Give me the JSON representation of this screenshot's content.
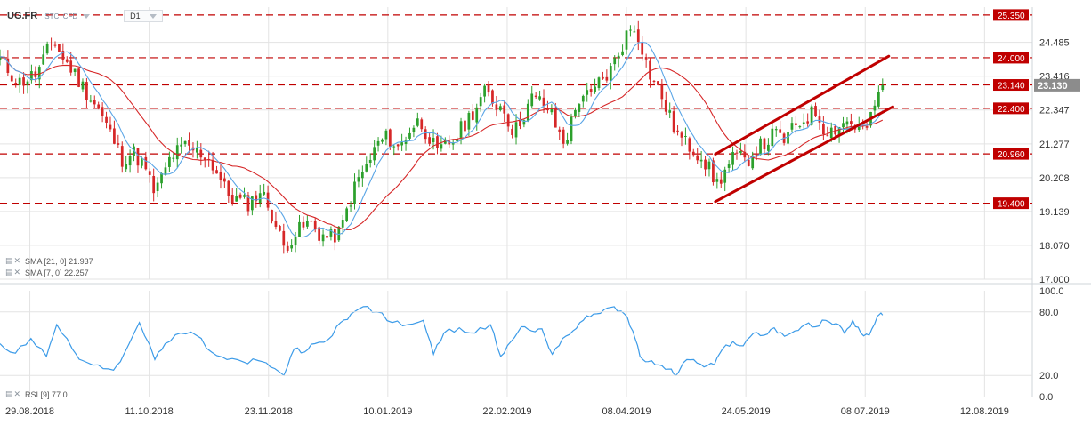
{
  "header": {
    "symbol": "UG.FR",
    "instrument_type": "STC_CFD",
    "timeframe": "D1"
  },
  "indicators": {
    "sma21": "SMA [21, 0] 21.937",
    "sma7": "SMA [7, 0] 22.257",
    "rsi": "RSI [9] 77.0"
  },
  "chart_data": {
    "type": "candlestick",
    "price_axis": {
      "ylim": [
        17.0,
        25.6
      ],
      "ticks": [
        "24.485",
        "23.416",
        "22.347",
        "21.277",
        "20.208",
        "19.139",
        "18.070",
        "17.000"
      ]
    },
    "date_axis": {
      "labels": [
        "29.08.2018",
        "11.10.2018",
        "23.11.2018",
        "10.01.2019",
        "22.02.2019",
        "08.04.2019",
        "24.05.2019",
        "08.07.2019",
        "12.08.2019"
      ]
    },
    "current_price": "23.130",
    "horizontal_levels": [
      {
        "label": "25.350",
        "value": 25.35
      },
      {
        "label": "24.000",
        "value": 24.0
      },
      {
        "label": "23.140",
        "value": 23.14
      },
      {
        "label": "22.400",
        "value": 22.4
      },
      {
        "label": "20.960",
        "value": 20.96
      },
      {
        "label": "19.400",
        "value": 19.4
      }
    ],
    "channel": {
      "upper": [
        [
          0.693,
          20.95
        ],
        [
          0.861,
          24.05
        ]
      ],
      "lower": [
        [
          0.693,
          19.45
        ],
        [
          0.865,
          22.45
        ]
      ]
    },
    "close_path": [
      [
        0.0,
        23.95
      ],
      [
        0.018,
        23.2
      ],
      [
        0.036,
        23.5
      ],
      [
        0.052,
        24.6
      ],
      [
        0.06,
        24.0
      ],
      [
        0.068,
        23.7
      ],
      [
        0.08,
        23.1
      ],
      [
        0.095,
        22.4
      ],
      [
        0.11,
        21.4
      ],
      [
        0.118,
        20.8
      ],
      [
        0.13,
        21.0
      ],
      [
        0.14,
        20.5
      ],
      [
        0.15,
        19.7
      ],
      [
        0.158,
        20.3
      ],
      [
        0.166,
        20.9
      ],
      [
        0.18,
        21.2
      ],
      [
        0.192,
        21.0
      ],
      [
        0.2,
        20.9
      ],
      [
        0.21,
        20.4
      ],
      [
        0.22,
        19.7
      ],
      [
        0.232,
        19.45
      ],
      [
        0.242,
        19.4
      ],
      [
        0.252,
        19.8
      ],
      [
        0.262,
        19.2
      ],
      [
        0.268,
        18.6
      ],
      [
        0.275,
        18.0
      ],
      [
        0.282,
        18.3
      ],
      [
        0.292,
        18.6
      ],
      [
        0.3,
        18.8
      ],
      [
        0.31,
        18.4
      ],
      [
        0.32,
        18.3
      ],
      [
        0.33,
        18.5
      ],
      [
        0.338,
        19.4
      ],
      [
        0.346,
        20.1
      ],
      [
        0.356,
        20.6
      ],
      [
        0.366,
        21.3
      ],
      [
        0.376,
        21.5
      ],
      [
        0.386,
        21.1
      ],
      [
        0.396,
        21.7
      ],
      [
        0.406,
        22.0
      ],
      [
        0.416,
        21.5
      ],
      [
        0.424,
        20.9
      ],
      [
        0.43,
        21.2
      ],
      [
        0.44,
        21.4
      ],
      [
        0.45,
        21.9
      ],
      [
        0.46,
        22.4
      ],
      [
        0.47,
        22.9
      ],
      [
        0.478,
        22.6
      ],
      [
        0.488,
        22.4
      ],
      [
        0.498,
        21.6
      ],
      [
        0.505,
        22.1
      ],
      [
        0.515,
        22.7
      ],
      [
        0.525,
        22.6
      ],
      [
        0.533,
        22.3
      ],
      [
        0.54,
        21.7
      ],
      [
        0.547,
        21.3
      ],
      [
        0.555,
        22.1
      ],
      [
        0.563,
        22.9
      ],
      [
        0.572,
        22.7
      ],
      [
        0.58,
        23.2
      ],
      [
        0.59,
        23.5
      ],
      [
        0.6,
        24.2
      ],
      [
        0.608,
        24.8
      ],
      [
        0.614,
        25.0
      ],
      [
        0.62,
        24.6
      ],
      [
        0.628,
        23.6
      ],
      [
        0.634,
        23.2
      ],
      [
        0.642,
        22.7
      ],
      [
        0.65,
        22.0
      ],
      [
        0.658,
        21.5
      ],
      [
        0.664,
        21.3
      ],
      [
        0.672,
        21.1
      ],
      [
        0.68,
        20.9
      ],
      [
        0.688,
        20.4
      ],
      [
        0.694,
        20.0
      ],
      [
        0.702,
        20.4
      ],
      [
        0.712,
        20.9
      ],
      [
        0.722,
        20.7
      ],
      [
        0.732,
        21.1
      ],
      [
        0.742,
        21.3
      ],
      [
        0.75,
        21.6
      ],
      [
        0.76,
        21.4
      ],
      [
        0.77,
        21.8
      ],
      [
        0.78,
        22.1
      ],
      [
        0.79,
        22.3
      ],
      [
        0.798,
        21.8
      ],
      [
        0.806,
        21.7
      ],
      [
        0.814,
        21.9
      ],
      [
        0.822,
        22.0
      ],
      [
        0.83,
        21.8
      ],
      [
        0.838,
        21.7
      ],
      [
        0.846,
        22.2
      ],
      [
        0.852,
        23.1
      ],
      [
        0.855,
        23.13
      ]
    ],
    "rsi": {
      "ylim": [
        0.0,
        100.0
      ],
      "ticks": [
        "100.0",
        "80.0",
        "20.0",
        "0.0"
      ],
      "path": [
        [
          0.0,
          50
        ],
        [
          0.015,
          41
        ],
        [
          0.03,
          55
        ],
        [
          0.045,
          38
        ],
        [
          0.055,
          68
        ],
        [
          0.07,
          45
        ],
        [
          0.08,
          34
        ],
        [
          0.095,
          30
        ],
        [
          0.11,
          25
        ],
        [
          0.12,
          40
        ],
        [
          0.135,
          70
        ],
        [
          0.15,
          35
        ],
        [
          0.16,
          50
        ],
        [
          0.175,
          60
        ],
        [
          0.19,
          58
        ],
        [
          0.205,
          42
        ],
        [
          0.22,
          35
        ],
        [
          0.235,
          33
        ],
        [
          0.25,
          34
        ],
        [
          0.262,
          28
        ],
        [
          0.275,
          20
        ],
        [
          0.285,
          45
        ],
        [
          0.295,
          42
        ],
        [
          0.305,
          50
        ],
        [
          0.318,
          54
        ],
        [
          0.33,
          70
        ],
        [
          0.34,
          78
        ],
        [
          0.352,
          85
        ],
        [
          0.365,
          80
        ],
        [
          0.38,
          70
        ],
        [
          0.395,
          68
        ],
        [
          0.41,
          72
        ],
        [
          0.42,
          40
        ],
        [
          0.43,
          60
        ],
        [
          0.445,
          65
        ],
        [
          0.46,
          60
        ],
        [
          0.475,
          68
        ],
        [
          0.485,
          38
        ],
        [
          0.495,
          52
        ],
        [
          0.505,
          66
        ],
        [
          0.515,
          62
        ],
        [
          0.525,
          64
        ],
        [
          0.535,
          40
        ],
        [
          0.545,
          55
        ],
        [
          0.555,
          62
        ],
        [
          0.565,
          72
        ],
        [
          0.575,
          78
        ],
        [
          0.585,
          82
        ],
        [
          0.595,
          85
        ],
        [
          0.605,
          78
        ],
        [
          0.613,
          62
        ],
        [
          0.62,
          38
        ],
        [
          0.628,
          33
        ],
        [
          0.638,
          30
        ],
        [
          0.648,
          26
        ],
        [
          0.655,
          20
        ],
        [
          0.662,
          32
        ],
        [
          0.672,
          35
        ],
        [
          0.682,
          28
        ],
        [
          0.692,
          30
        ],
        [
          0.7,
          45
        ],
        [
          0.71,
          52
        ],
        [
          0.72,
          48
        ],
        [
          0.73,
          60
        ],
        [
          0.74,
          58
        ],
        [
          0.75,
          65
        ],
        [
          0.76,
          57
        ],
        [
          0.77,
          62
        ],
        [
          0.78,
          68
        ],
        [
          0.79,
          66
        ],
        [
          0.8,
          72
        ],
        [
          0.81,
          69
        ],
        [
          0.818,
          60
        ],
        [
          0.826,
          72
        ],
        [
          0.834,
          60
        ],
        [
          0.842,
          58
        ],
        [
          0.85,
          76
        ],
        [
          0.855,
          77
        ]
      ]
    }
  },
  "colors": {
    "bull": "#2ca02c",
    "bear": "#d62728",
    "sma21": "#d62728",
    "sma7": "#5aa5e6",
    "rsi": "#3c9be8",
    "level_line": "#c00000",
    "level_badge": "#c00000",
    "channel": "#c00000",
    "price_tag": "#8c8c8c",
    "grid": "#e3e3e3"
  }
}
